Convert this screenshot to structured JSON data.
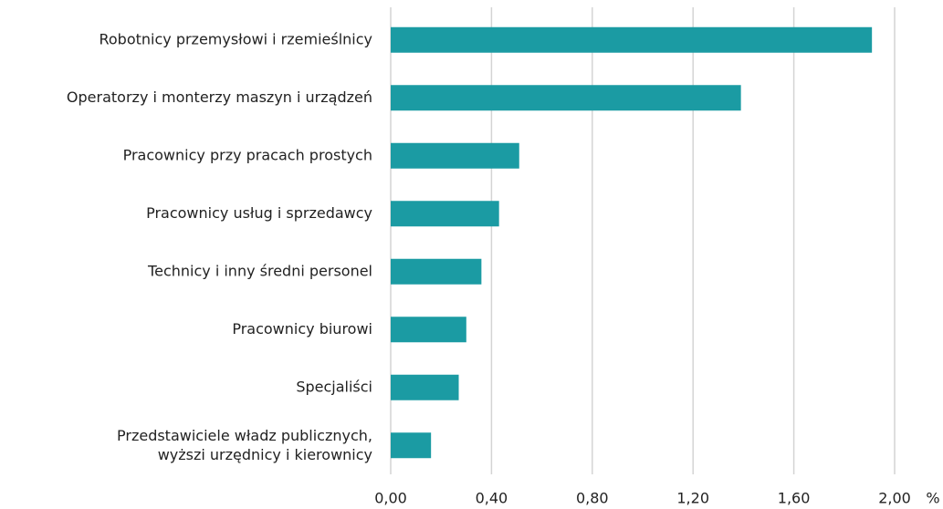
{
  "chart_data": {
    "type": "bar",
    "orientation": "horizontal",
    "categories": [
      "Robotnicy przemysłowi i rzemieślnicy",
      "Operatorzy i monterzy maszyn i urządzeń",
      "Pracownicy przy pracach prostych",
      "Pracownicy usług i sprzedawcy",
      "Technicy i inny średni personel",
      "Pracownicy biurowi",
      "Specjaliści",
      "Przedstawiciele władz publicznych,\nwyższi urzędnicy i kierownicy"
    ],
    "values": [
      1.91,
      1.39,
      0.51,
      0.43,
      0.36,
      0.3,
      0.27,
      0.16
    ],
    "color": "#1b9ba3",
    "xlim": [
      0,
      2
    ],
    "xticks": [
      {
        "value": 0,
        "label": "0,00"
      },
      {
        "value": 0.4,
        "label": "0,40"
      },
      {
        "value": 0.8,
        "label": "0,80"
      },
      {
        "value": 1.2,
        "label": "1,20"
      },
      {
        "value": 1.6,
        "label": "1,60"
      },
      {
        "value": 2,
        "label": "2,00"
      }
    ],
    "x_label": "%",
    "grid": true
  }
}
